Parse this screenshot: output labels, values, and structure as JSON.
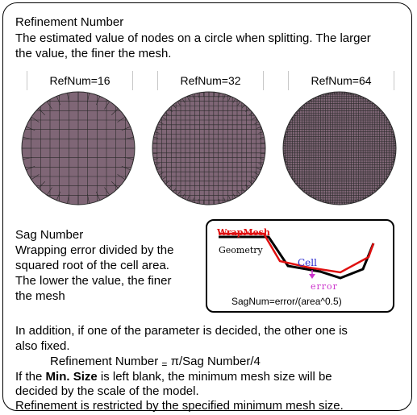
{
  "refinement": {
    "title": "Refinement Number",
    "desc_line1": "The estimated value of nodes on a circle when splitting. The larger",
    "desc_line2": "the value, the finer the mesh.",
    "panels": [
      {
        "label": "RefNum=16",
        "divisions": 16
      },
      {
        "label": "RefNum=32",
        "divisions": 32
      },
      {
        "label": "RefNum=64",
        "divisions": 64
      }
    ]
  },
  "sag": {
    "title": "Sag Number",
    "lines": [
      "Wrapping error divided by the",
      "squared root of the cell area.",
      "The lower the value, the finer",
      "the mesh"
    ],
    "diagram": {
      "wrap_mesh": "WrapMesh",
      "geometry": "Geometry",
      "cell": "Cell",
      "error": "error",
      "formula": "SagNum=error/(area^0.5)",
      "mesh_color": "#e01010",
      "cell_color": "#2a2ad0",
      "error_color": "#cc33cc"
    }
  },
  "addition": {
    "line1": "In addition, if one of the parameter is decided, the other one is",
    "line2": "also fixed.",
    "formula_left": "Refinement Number",
    "formula_eq": "=",
    "formula_right": "π/Sag Number/4",
    "minsize_pre": "If the ",
    "minsize_bold": "Min. Size",
    "minsize_post": " is left blank, the minimum mesh size will be",
    "minsize_line2": "decided by the scale of the model.",
    "restrict": "Refinement is restricted by the specified minimum mesh size."
  },
  "colors": {
    "mesh_fill": "#7f6676",
    "mesh_line": "#2a2a2a",
    "panel_border": "#c8c8c8"
  }
}
